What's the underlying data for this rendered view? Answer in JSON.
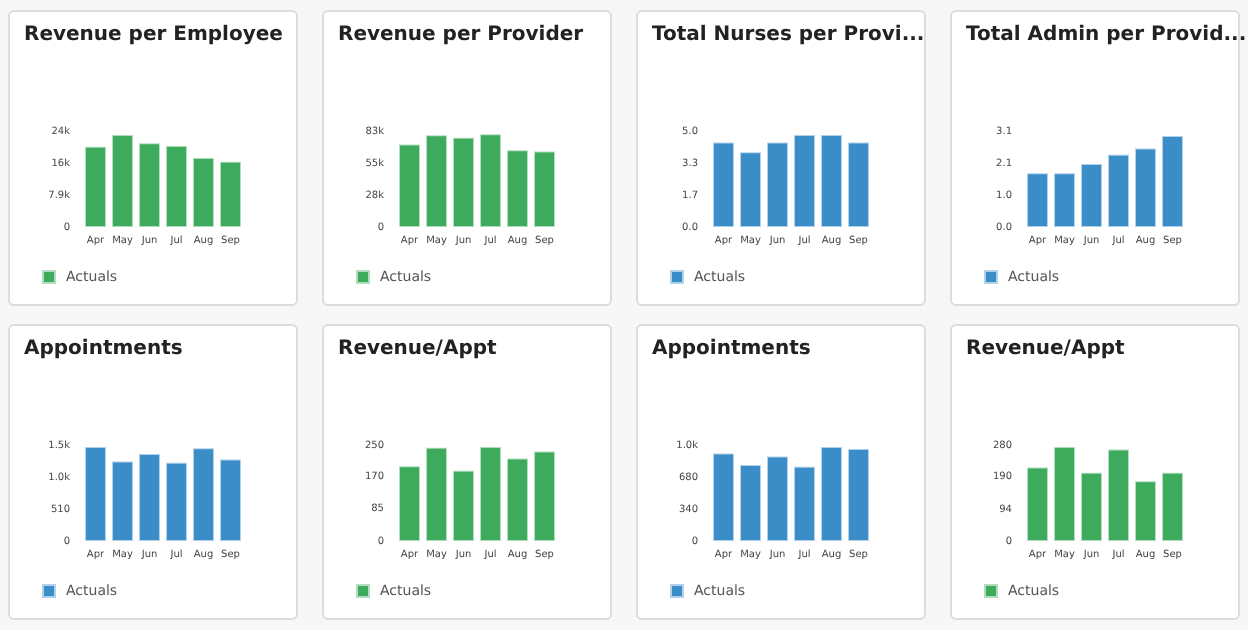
{
  "chart_data": [
    {
      "type": "bar",
      "title": "Revenue per Employee",
      "categories": [
        "Apr",
        "May",
        "Jun",
        "Jul",
        "Aug",
        "Sep"
      ],
      "series": [
        {
          "name": "Actuals",
          "color": "#3daa5c",
          "values": [
            20300,
            23200,
            21200,
            20500,
            17500,
            16600
          ]
        }
      ],
      "ylim": [
        0,
        23700
      ],
      "yticks": [
        0,
        {
          "value": 7900,
          "label": "7.9k"
        },
        {
          "value": 15800,
          "label": "16k"
        },
        {
          "value": 23700,
          "label": "24k"
        }
      ],
      "legend": "bottom left"
    },
    {
      "type": "bar",
      "title": "Revenue per Provider",
      "categories": [
        "Apr",
        "May",
        "Jun",
        "Jul",
        "Aug",
        "Sep"
      ],
      "series": [
        {
          "name": "Actuals",
          "color": "#3daa5c",
          "values": [
            73000,
            81000,
            79000,
            82000,
            68000,
            67000
          ]
        }
      ],
      "ylim": [
        0,
        83000
      ],
      "yticks": [
        0,
        {
          "value": 27700,
          "label": "28k"
        },
        {
          "value": 55300,
          "label": "55k"
        },
        {
          "value": 83000,
          "label": "83k"
        }
      ],
      "legend": "bottom left"
    },
    {
      "type": "bar",
      "title": "Total Nurses per Provi...",
      "categories": [
        "Apr",
        "May",
        "Jun",
        "Jul",
        "Aug",
        "Sep"
      ],
      "series": [
        {
          "name": "Actuals",
          "color": "#3b8dc8",
          "values": [
            4.5,
            4.0,
            4.5,
            4.9,
            4.9,
            4.5
          ]
        }
      ],
      "ylim": [
        0,
        5
      ],
      "yticks": [
        {
          "value": 0,
          "label": "0.0"
        },
        {
          "value": 1.67,
          "label": "1.7"
        },
        {
          "value": 3.33,
          "label": "3.3"
        },
        {
          "value": 5,
          "label": "5.0"
        }
      ],
      "legend": "bottom left"
    },
    {
      "type": "bar",
      "title": "Total Admin per Provid...",
      "categories": [
        "Apr",
        "May",
        "Jun",
        "Jul",
        "Aug",
        "Sep"
      ],
      "series": [
        {
          "name": "Actuals",
          "color": "#3b8dc8",
          "values": [
            1.8,
            1.8,
            2.1,
            2.4,
            2.6,
            3.0
          ]
        }
      ],
      "ylim": [
        0,
        3.1
      ],
      "yticks": [
        {
          "value": 0,
          "label": "0.0"
        },
        {
          "value": 1.03,
          "label": "1.0"
        },
        {
          "value": 2.07,
          "label": "2.1"
        },
        {
          "value": 3.1,
          "label": "3.1"
        }
      ],
      "legend": "bottom left"
    },
    {
      "type": "bar",
      "title": "Appointments",
      "categories": [
        "Apr",
        "May",
        "Jun",
        "Jul",
        "Aug",
        "Sep"
      ],
      "series": [
        {
          "name": "Actuals",
          "color": "#3b8dc8",
          "values": [
            1530,
            1300,
            1420,
            1280,
            1510,
            1330
          ]
        }
      ],
      "ylim": [
        0,
        1530
      ],
      "yticks": [
        0,
        510,
        {
          "value": 1020,
          "label": "1.0k"
        },
        {
          "value": 1530,
          "label": "1.5k"
        }
      ],
      "legend": "bottom left"
    },
    {
      "type": "bar",
      "title": "Revenue/Appt",
      "categories": [
        "Apr",
        "May",
        "Jun",
        "Jul",
        "Aug",
        "Sep"
      ],
      "series": [
        {
          "name": "Actuals",
          "color": "#3daa5c",
          "values": [
            200,
            248,
            188,
            250,
            220,
            238
          ]
        }
      ],
      "ylim": [
        0,
        250
      ],
      "yticks": [
        0,
        85,
        170,
        250
      ],
      "legend": "bottom left"
    },
    {
      "type": "bar",
      "title": "Appointments",
      "categories": [
        "Apr",
        "May",
        "Jun",
        "Jul",
        "Aug",
        "Sep"
      ],
      "series": [
        {
          "name": "Actuals",
          "color": "#3b8dc8",
          "values": [
            950,
            830,
            920,
            810,
            1020,
            1000
          ]
        }
      ],
      "ylim": [
        0,
        1020
      ],
      "yticks": [
        0,
        340,
        680,
        {
          "value": 1020,
          "label": "1.0k"
        }
      ],
      "legend": "bottom left"
    },
    {
      "type": "bar",
      "title": "Revenue/Appt",
      "categories": [
        "Apr",
        "May",
        "Jun",
        "Jul",
        "Aug",
        "Sep"
      ],
      "series": [
        {
          "name": "Actuals",
          "color": "#3daa5c",
          "values": [
            220,
            280,
            205,
            273,
            180,
            205
          ]
        }
      ],
      "ylim": [
        0,
        280
      ],
      "yticks": [
        0,
        94,
        190,
        280
      ],
      "legend": "bottom left"
    }
  ]
}
